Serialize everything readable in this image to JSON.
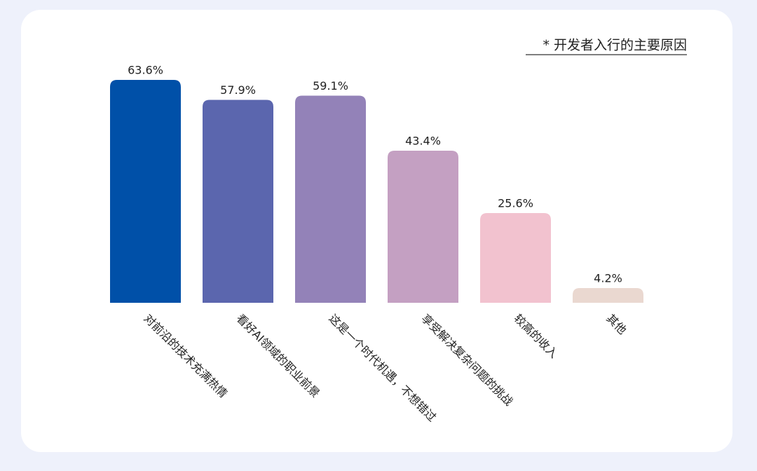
{
  "chart_data": {
    "type": "bar",
    "title": "* 开发者入行的主要原因",
    "categories": [
      "对前沿的技术充满热情",
      "看好AI领域的职业前景",
      "这是一个时代机遇，不想错过",
      "享受解决复杂问题的挑战",
      "较高的收入",
      "其他"
    ],
    "values": [
      63.6,
      57.9,
      59.1,
      43.4,
      25.6,
      4.2
    ],
    "value_labels": [
      "63.6%",
      "57.9%",
      "59.1%",
      "43.4%",
      "25.6%",
      "4.2%"
    ],
    "colors": [
      "#0050a8",
      "#5b66ae",
      "#9382b8",
      "#c4a0c2",
      "#f2c2cf",
      "#ead8d0"
    ]
  }
}
